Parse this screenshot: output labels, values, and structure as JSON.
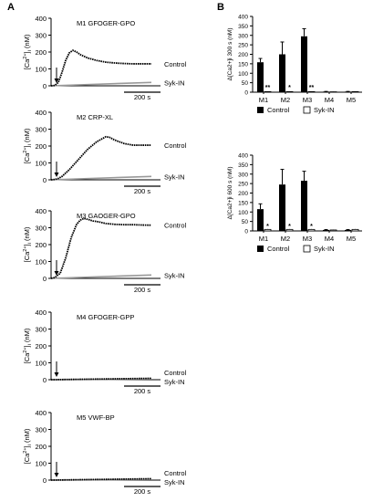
{
  "panels": {
    "a": "A",
    "b": "B"
  },
  "colors": {
    "control": "#000000",
    "syk_in": "#999999",
    "axis": "#000000"
  },
  "left": {
    "y_ticks": [
      "0",
      "100",
      "200",
      "300",
      "400"
    ],
    "y_label_main": "[Ca",
    "y_label_sup": "2+",
    "y_label_rest": "]",
    "y_label_sub": "i",
    "y_label_unit": " (nM)",
    "control_label": "Control",
    "sykin_label": "Syk-IN",
    "scalebar_label": "200 s"
  },
  "right": {
    "x_categories": [
      "M1",
      "M2",
      "M3",
      "M4",
      "M5"
    ],
    "legend_control": "Control",
    "legend_sykin": "Syk-IN",
    "top_ylabel": "Δ[Ca2+]i 300 s (nM)",
    "top_yticks": [
      "0",
      "50",
      "100",
      "150",
      "200",
      "250",
      "300",
      "350",
      "400"
    ],
    "bottom_ylabel": "Δ[Ca2+]i 600 s (nM)",
    "bottom_yticks": [
      "0",
      "50",
      "100",
      "150",
      "200",
      "250",
      "300",
      "350",
      "400"
    ]
  },
  "chart_data": [
    {
      "type": "line",
      "title": "M1 GFOGER-GPO",
      "ylabel": "[Ca2+]i (nM)",
      "ylim": [
        0,
        400
      ],
      "xlim_s": [
        0,
        600
      ],
      "scalebar_s": 200,
      "stimulus_time_s": 20,
      "series": [
        {
          "name": "Control",
          "x": [
            0,
            20,
            40,
            60,
            80,
            100,
            120,
            140,
            160,
            200,
            250,
            300,
            350,
            400,
            450,
            500,
            550
          ],
          "y": [
            0,
            2,
            20,
            80,
            150,
            195,
            210,
            200,
            185,
            165,
            150,
            140,
            135,
            132,
            130,
            130,
            130
          ]
        },
        {
          "name": "Syk-IN",
          "x": [
            0,
            550
          ],
          "y": [
            0,
            20
          ]
        }
      ]
    },
    {
      "type": "line",
      "title": "M2 CRP-XL",
      "ylabel": "[Ca2+]i (nM)",
      "ylim": [
        0,
        400
      ],
      "xlim_s": [
        0,
        600
      ],
      "scalebar_s": 200,
      "stimulus_time_s": 20,
      "series": [
        {
          "name": "Control",
          "x": [
            0,
            20,
            40,
            60,
            100,
            150,
            200,
            250,
            300,
            320,
            350,
            400,
            450,
            500,
            550
          ],
          "y": [
            0,
            2,
            8,
            20,
            60,
            120,
            180,
            225,
            255,
            252,
            235,
            215,
            205,
            205,
            205
          ]
        },
        {
          "name": "Syk-IN",
          "x": [
            0,
            550
          ],
          "y": [
            0,
            20
          ]
        }
      ]
    },
    {
      "type": "line",
      "title": "M3 GAOGER-GPO",
      "ylabel": "[Ca2+]i (nM)",
      "ylim": [
        0,
        400
      ],
      "xlim_s": [
        0,
        600
      ],
      "scalebar_s": 200,
      "stimulus_time_s": 20,
      "series": [
        {
          "name": "Control",
          "x": [
            0,
            20,
            50,
            80,
            110,
            140,
            160,
            180,
            200,
            230,
            260,
            300,
            350,
            400,
            450,
            500,
            550
          ],
          "y": [
            0,
            5,
            30,
            120,
            240,
            320,
            345,
            355,
            350,
            340,
            335,
            325,
            320,
            318,
            318,
            316,
            315
          ]
        },
        {
          "name": "Syk-IN",
          "x": [
            0,
            550
          ],
          "y": [
            0,
            20
          ]
        }
      ]
    },
    {
      "type": "line",
      "title": "M4 GFOGER-GPP",
      "ylabel": "[Ca2+]i (nM)",
      "ylim": [
        0,
        400
      ],
      "xlim_s": [
        0,
        600
      ],
      "scalebar_s": 200,
      "stimulus_time_s": 20,
      "series": [
        {
          "name": "Control",
          "x": [
            0,
            550
          ],
          "y": [
            0,
            8
          ]
        },
        {
          "name": "Syk-IN",
          "x": [
            0,
            550
          ],
          "y": [
            0,
            4
          ]
        }
      ]
    },
    {
      "type": "line",
      "title": "M5 VWF-BP",
      "ylabel": "[Ca2+]i (nM)",
      "ylim": [
        0,
        400
      ],
      "xlim_s": [
        0,
        600
      ],
      "scalebar_s": 200,
      "stimulus_time_s": 20,
      "series": [
        {
          "name": "Control",
          "x": [
            0,
            550
          ],
          "y": [
            0,
            8
          ]
        },
        {
          "name": "Syk-IN",
          "x": [
            0,
            550
          ],
          "y": [
            0,
            4
          ]
        }
      ]
    },
    {
      "type": "bar",
      "title": "",
      "categories": [
        "M1",
        "M2",
        "M3",
        "M4",
        "M5"
      ],
      "ylabel": "Δ[Ca2+]i 300 s (nM)",
      "ylim": [
        0,
        400
      ],
      "series": [
        {
          "name": "Control",
          "values": [
            158,
            200,
            295,
            3,
            3
          ],
          "errors": [
            20,
            65,
            40,
            1,
            1
          ]
        },
        {
          "name": "Syk-IN",
          "values": [
            3,
            3,
            3,
            2,
            3
          ],
          "errors": [
            1,
            1,
            1,
            1,
            1
          ]
        }
      ],
      "annotations": [
        "**",
        "*",
        "**",
        "",
        ""
      ]
    },
    {
      "type": "bar",
      "title": "",
      "categories": [
        "M1",
        "M2",
        "M3",
        "M4",
        "M5"
      ],
      "ylabel": "Δ[Ca2+]i 600 s (nM)",
      "ylim": [
        0,
        400
      ],
      "series": [
        {
          "name": "Control",
          "values": [
            115,
            245,
            265,
            5,
            5
          ],
          "errors": [
            28,
            80,
            50,
            2,
            2
          ]
        },
        {
          "name": "Syk-IN",
          "values": [
            8,
            8,
            8,
            5,
            8
          ],
          "errors": [
            2,
            2,
            2,
            2,
            2
          ]
        }
      ],
      "annotations": [
        "*",
        "*",
        "*",
        "",
        ""
      ]
    }
  ]
}
